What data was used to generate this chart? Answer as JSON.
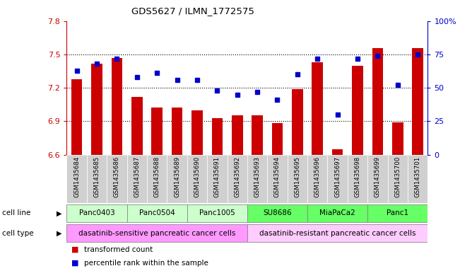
{
  "title": "GDS5627 / ILMN_1772575",
  "samples": [
    "GSM1435684",
    "GSM1435685",
    "GSM1435686",
    "GSM1435687",
    "GSM1435688",
    "GSM1435689",
    "GSM1435690",
    "GSM1435691",
    "GSM1435692",
    "GSM1435693",
    "GSM1435694",
    "GSM1435695",
    "GSM1435696",
    "GSM1435697",
    "GSM1435698",
    "GSM1435699",
    "GSM1435700",
    "GSM1435701"
  ],
  "transformed_count": [
    7.28,
    7.42,
    7.47,
    7.12,
    7.02,
    7.02,
    7.0,
    6.93,
    6.95,
    6.95,
    6.88,
    7.19,
    7.43,
    6.65,
    7.4,
    7.56,
    6.89,
    7.56
  ],
  "percentile_rank": [
    63,
    68,
    72,
    58,
    61,
    56,
    56,
    48,
    45,
    47,
    41,
    60,
    72,
    30,
    72,
    74,
    52,
    75
  ],
  "cell_line_groups": [
    {
      "label": "Panc0403",
      "start": 0,
      "end": 2,
      "color": "#ccffcc"
    },
    {
      "label": "Panc0504",
      "start": 3,
      "end": 5,
      "color": "#ccffcc"
    },
    {
      "label": "Panc1005",
      "start": 6,
      "end": 8,
      "color": "#ccffcc"
    },
    {
      "label": "SU8686",
      "start": 9,
      "end": 11,
      "color": "#66ff66"
    },
    {
      "label": "MiaPaCa2",
      "start": 12,
      "end": 14,
      "color": "#66ff66"
    },
    {
      "label": "Panc1",
      "start": 15,
      "end": 17,
      "color": "#66ff66"
    }
  ],
  "cell_type_groups": [
    {
      "label": "dasatinib-sensitive pancreatic cancer cells",
      "start": 0,
      "end": 8,
      "color": "#ff99ff"
    },
    {
      "label": "dasatinib-resistant pancreatic cancer cells",
      "start": 9,
      "end": 17,
      "color": "#ffccff"
    }
  ],
  "ylim_left": [
    6.6,
    7.8
  ],
  "ylim_right": [
    0,
    100
  ],
  "yticks_left": [
    6.6,
    6.9,
    7.2,
    7.5,
    7.8
  ],
  "yticks_right": [
    0,
    25,
    50,
    75,
    100
  ],
  "bar_color": "#cc0000",
  "dot_color": "#0000cc",
  "bar_width": 0.55,
  "left_axis_color": "#cc0000",
  "right_axis_color": "#0000cc",
  "background_color": "#ffffff",
  "sample_label_color": "#000000",
  "grid_yticks": [
    6.9,
    7.2,
    7.5
  ]
}
